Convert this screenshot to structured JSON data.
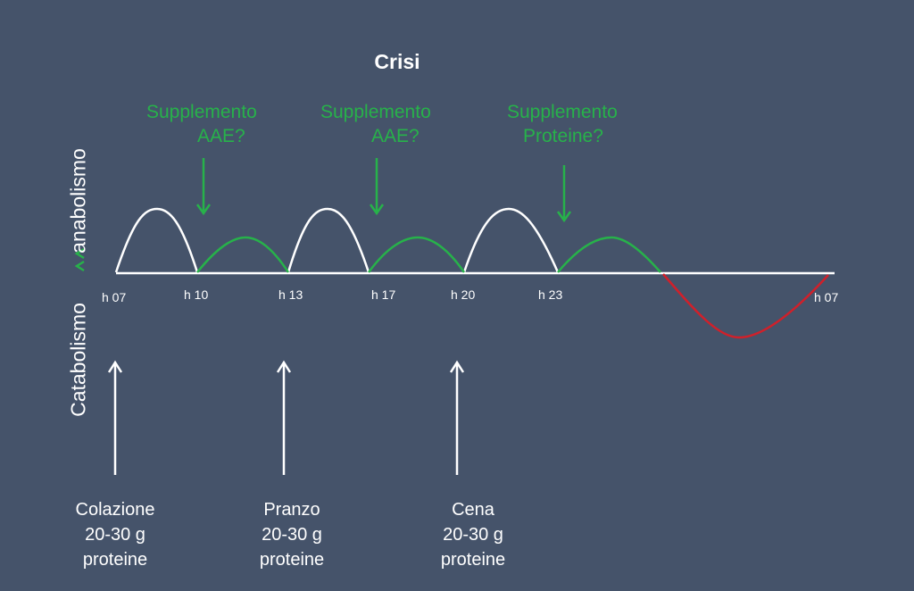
{
  "title": "Crisi",
  "supplements": [
    {
      "line1": "Supplemento",
      "line2": "AAE?"
    },
    {
      "line1": "Supplemento",
      "line2": "AAE?"
    },
    {
      "line1": "Supplemento",
      "line2": "Proteine?"
    }
  ],
  "time_labels": [
    "h 07",
    "h 10",
    "h 13",
    "h 17",
    "h 20",
    "h 23",
    "h 07"
  ],
  "meals": [
    {
      "name": "Colazione",
      "amount": "20-30 g",
      "unit": "proteine"
    },
    {
      "name": "Pranzo",
      "amount": "20-30 g",
      "unit": "proteine"
    },
    {
      "name": "Cena",
      "amount": "20-30 g",
      "unit": "proteine"
    }
  ],
  "y_axis": {
    "upper_label": "anabolismo",
    "lower_label": "Catabolismo"
  },
  "colors": {
    "background": "#45536a",
    "meal_curve": "#ffffff",
    "supplement_curve": "#27b24a",
    "catabolic_curve": "#d0202a",
    "axis": "#ffffff",
    "text": "#ffffff",
    "supplement_text": "#27b24a"
  }
}
